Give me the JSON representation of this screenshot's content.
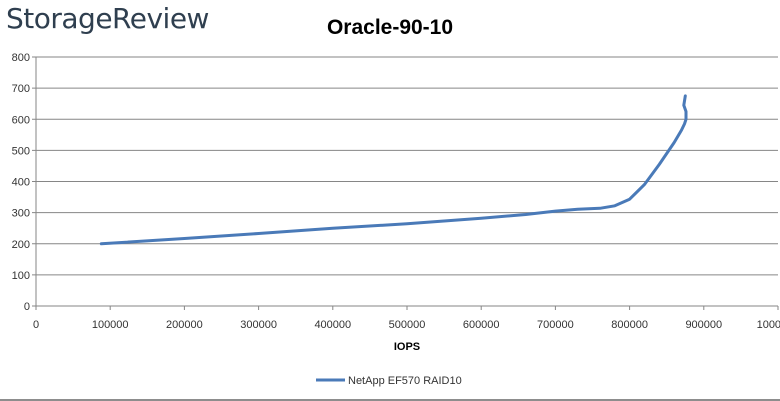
{
  "brand": "StorageReview",
  "chart_data": {
    "type": "line",
    "title": "Oracle-90-10",
    "xlabel": "IOPS",
    "ylabel": "",
    "xlim": [
      0,
      1000000
    ],
    "ylim": [
      0,
      800
    ],
    "x_ticks": [
      0,
      100000,
      200000,
      300000,
      400000,
      500000,
      600000,
      700000,
      800000,
      900000,
      1000000
    ],
    "x_tick_labels": [
      "0",
      "100000",
      "200000",
      "300000",
      "400000",
      "500000",
      "600000",
      "700000",
      "800000",
      "900000",
      "1000000"
    ],
    "y_ticks": [
      0,
      100,
      200,
      300,
      400,
      500,
      600,
      700,
      800
    ],
    "y_tick_labels": [
      "0",
      "100",
      "200",
      "300",
      "400",
      "500",
      "600",
      "700",
      "800"
    ],
    "grid": "horizontal",
    "legend_position": "bottom",
    "series": [
      {
        "name": "NetApp EF570 RAID10",
        "color": "#4a7ab8",
        "points": [
          [
            88000,
            200
          ],
          [
            200000,
            217
          ],
          [
            300000,
            233
          ],
          [
            400000,
            250
          ],
          [
            500000,
            264
          ],
          [
            600000,
            282
          ],
          [
            660000,
            294
          ],
          [
            700000,
            305
          ],
          [
            730000,
            311
          ],
          [
            760000,
            314
          ],
          [
            780000,
            322
          ],
          [
            800000,
            343
          ],
          [
            820000,
            390
          ],
          [
            840000,
            455
          ],
          [
            860000,
            525
          ],
          [
            870000,
            565
          ],
          [
            874000,
            585
          ],
          [
            876000,
            600
          ],
          [
            876000,
            625
          ],
          [
            873000,
            645
          ],
          [
            875000,
            675
          ]
        ]
      }
    ]
  }
}
